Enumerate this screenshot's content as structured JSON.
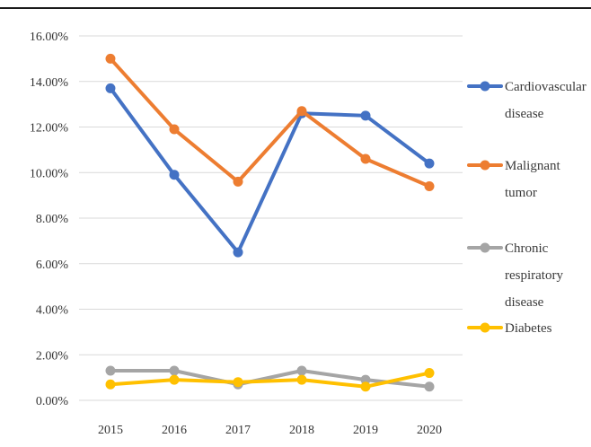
{
  "chart_data": {
    "type": "line",
    "title": "",
    "xlabel": "",
    "ylabel": "",
    "categories": [
      "2015",
      "2016",
      "2017",
      "2018",
      "2019",
      "2020"
    ],
    "y_ticks": [
      "0.00%",
      "2.00%",
      "4.00%",
      "6.00%",
      "8.00%",
      "10.00%",
      "12.00%",
      "14.00%",
      "16.00%"
    ],
    "ylim": [
      0,
      16
    ],
    "grid": true,
    "legend_position": "right",
    "series": [
      {
        "name": "Cardiovascular disease",
        "legend_lines": [
          "Cardiovascular",
          "disease"
        ],
        "color": "#4472C4",
        "values": [
          13.7,
          9.9,
          6.5,
          12.6,
          12.5,
          10.4
        ]
      },
      {
        "name": "Malignant tumor",
        "legend_lines": [
          "Malignant",
          "tumor"
        ],
        "color": "#ED7D31",
        "values": [
          15.0,
          11.9,
          9.6,
          12.7,
          10.6,
          9.4
        ]
      },
      {
        "name": "Chronic respiratory disease",
        "legend_lines": [
          "Chronic",
          "respiratory",
          "disease"
        ],
        "color": "#A5A5A5",
        "values": [
          1.3,
          1.3,
          0.7,
          1.3,
          0.9,
          0.6
        ]
      },
      {
        "name": "Diabetes",
        "legend_lines": [
          "Diabetes"
        ],
        "color": "#FFC000",
        "values": [
          0.7,
          0.9,
          0.8,
          0.9,
          0.6,
          1.2
        ]
      }
    ]
  }
}
